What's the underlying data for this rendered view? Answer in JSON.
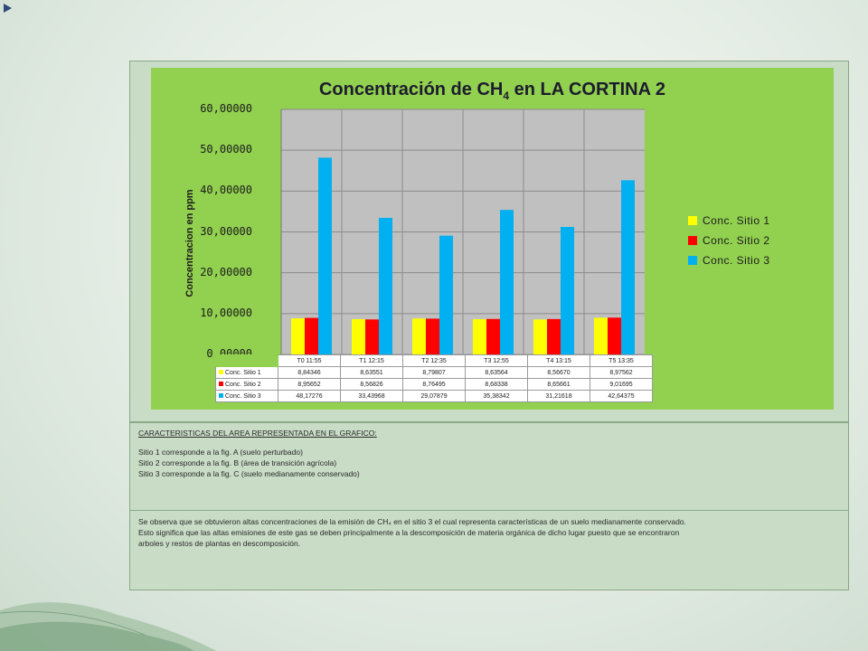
{
  "slide": {
    "caracteristicas_heading": "CARACTERISTICAS DEL AREA REPRESENTADA EN EL GRAFICO:",
    "sitio_lines": [
      "Sitio 1 corresponde a la fig. A (suelo perturbado)",
      "Sitio 2 corresponde a la fig. B (área de transición agrícola)",
      "Sitio 3 corresponde a la fig. C (suelo medianamente conservado)"
    ],
    "observation": [
      "Se observa  que se obtuvieron altas concentraciones de la emisión de CH₄  en el sitio 3 el cual representa  características de un suelo medianamente conservado.",
      "Esto significa que las altas emisiones de este gas se deben principalmente a la descomposición de materia orgánica de dicho lugar puesto que se encontraron",
      "arboles y restos de plantas en descomposición."
    ]
  },
  "chart_data": {
    "type": "bar",
    "title_main": "Concentración de CH",
    "title_sub": "4",
    "title_rest": " en LA CORTINA 2",
    "ylabel": "Concentracion  en ppm",
    "ylim": [
      0,
      60
    ],
    "yticks": [
      "0,00000",
      "10,00000",
      "20,00000",
      "30,00000",
      "40,00000",
      "50,00000",
      "60,00000"
    ],
    "categories": [
      "T0 11:55",
      "T1 12:15",
      "T2 12:35",
      "T3 12:55",
      "T4 13:15",
      "T5 13:35"
    ],
    "series": [
      {
        "name": "Conc. Sitio 1",
        "color": "#ffff00",
        "values": [
          8.84346,
          8.63551,
          8.79807,
          8.63564,
          8.5667,
          8.97562
        ],
        "labels": [
          "8,84346",
          "8,63551",
          "8,79807",
          "8,63564",
          "8,56670",
          "8,97562"
        ]
      },
      {
        "name": "Conc. Sitio 2",
        "color": "#ff0000",
        "values": [
          8.95652,
          8.56826,
          8.76495,
          8.68338,
          8.65661,
          9.01695
        ],
        "labels": [
          "8,95652",
          "8,56826",
          "8,76495",
          "8,68338",
          "8,65661",
          "9,01695"
        ]
      },
      {
        "name": "Conc. Sitio 3",
        "color": "#00b0f0",
        "values": [
          48.17276,
          33.43968,
          29.07879,
          35.38342,
          31.21618,
          42.64375
        ],
        "labels": [
          "48,17276",
          "33,43968",
          "29,07879",
          "35,38342",
          "31,21618",
          "42,64375"
        ]
      }
    ],
    "legend_position": "right",
    "grid": true,
    "data_table": true
  }
}
